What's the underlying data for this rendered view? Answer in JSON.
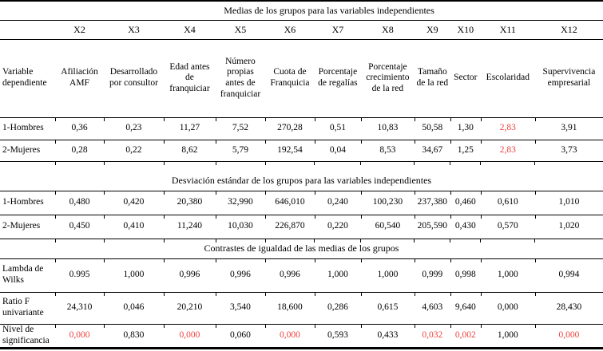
{
  "colors": {
    "highlight_red": "#ee423d",
    "text": "#000000"
  },
  "table": {
    "column_ids": [
      "X2",
      "X3",
      "X4",
      "X5",
      "X6",
      "X7",
      "X8",
      "X9",
      "X10",
      "X11",
      "X12"
    ],
    "row_label_header": "Variable dependiente",
    "column_names": [
      "Afiliación AMF",
      "Desarrollado por consultor",
      "Edad antes de franquiciar",
      "Número propias antes de franquiciar",
      "Cuota de Franquicia",
      "Porcentaje de regalías",
      "Porcentaje crecimiento de la red",
      "Tamaño de la red",
      "Sector",
      "Escolaridad",
      "Supervivencia empresarial"
    ],
    "sections": [
      {
        "title": "Medias de los grupos para las variables independientes",
        "rows": [
          {
            "label": "1-Hombres",
            "values": [
              "0,36",
              "0,23",
              "11,27",
              "7,52",
              "270,28",
              "0,51",
              "10,83",
              "50,58",
              "1,30",
              "2,83",
              "3,91"
            ],
            "red_indices": [
              9
            ]
          },
          {
            "label": "2-Mujeres",
            "values": [
              "0,28",
              "0,22",
              "8,62",
              "5,79",
              "192,54",
              "0,04",
              "8,53",
              "34,67",
              "1,25",
              "2,83",
              "3,73"
            ],
            "red_indices": [
              9
            ]
          }
        ]
      },
      {
        "title": "Desviación estándar de los grupos para las variables independientes",
        "rows": [
          {
            "label": "1-Hombres",
            "values": [
              "0,480",
              "0,420",
              "20,380",
              "32,990",
              "646,010",
              "0,240",
              "100,230",
              "237,380",
              "0,460",
              "0,610",
              "1,010"
            ],
            "red_indices": []
          },
          {
            "label": "2-Mujeres",
            "values": [
              "0,450",
              "0,410",
              "11,240",
              "10,030",
              "226,870",
              "0,220",
              "60,540",
              "205,590",
              "0,430",
              "0,570",
              "1,020"
            ],
            "red_indices": []
          }
        ]
      },
      {
        "title": "Contrastes de igualdad de las medias de los grupos",
        "rows": [
          {
            "label": "Lambda de Wilks",
            "values": [
              "0.995",
              "1,000",
              "0,996",
              "0,996",
              "0,996",
              "1,000",
              "1,000",
              "0,999",
              "0,998",
              "1,000",
              "0,994"
            ],
            "red_indices": []
          },
          {
            "label": "Ratio F univariante",
            "values": [
              "24,310",
              "0,046",
              "20,210",
              "3,540",
              "18,600",
              "0,286",
              "0,615",
              "4,603",
              "9,640",
              "0,000",
              "28,430"
            ],
            "red_indices": []
          },
          {
            "label": "Nivel de significancia",
            "values": [
              "0,000",
              "0,830",
              "0,000",
              "0,060",
              "0,000",
              "0,593",
              "0,433",
              "0,032",
              "0,002",
              "1,000",
              "0,000"
            ],
            "red_indices": [
              0,
              2,
              4,
              7,
              8,
              10
            ]
          }
        ]
      }
    ]
  }
}
